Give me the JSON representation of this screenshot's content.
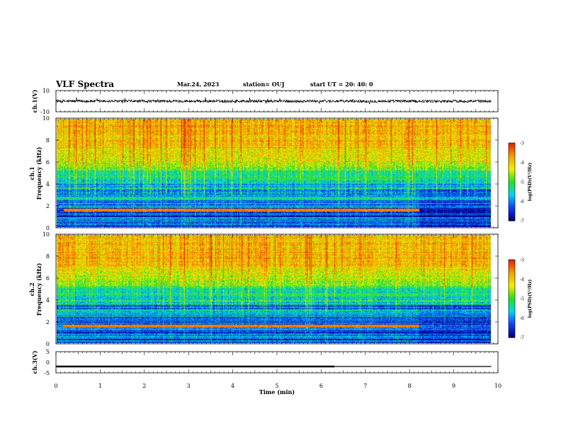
{
  "header": {
    "title": "VLF Spectra",
    "date": "Mar.24, 2023",
    "station": "station= OUJ",
    "start": "start  UT  =   20: 40: 0"
  },
  "colors": {
    "red": "#e8200a",
    "orange": "#f5a000",
    "yellow": "#f0f000",
    "green": "#22e020",
    "cyan": "#00d8f0",
    "blue": "#1040ff",
    "navy": "#000080"
  },
  "chart_data": [
    {
      "type": "line",
      "panel": "ch1_waveform",
      "ylabel": "ch.1(V)",
      "ylim": [
        -10,
        10
      ],
      "yticks": [
        "10",
        "-10"
      ],
      "xlim": [
        0,
        10
      ],
      "note_value_range": [
        -2,
        2
      ]
    },
    {
      "type": "heatmap",
      "panel": "ch1_spectrogram",
      "ylabel_line1": "ch.1",
      "ylabel_line2": "Frequency  (kHz)",
      "ylim": [
        0,
        10
      ],
      "yticks": [
        "0",
        "2",
        "4",
        "6",
        "8",
        "10"
      ],
      "xlim": [
        0,
        10
      ],
      "bands": [
        {
          "from_khz": 1.4,
          "to_khz": 1.7,
          "start_min": 0.15,
          "end_min": 8.35,
          "level": -3.5
        },
        {
          "from_khz": 4.3,
          "to_khz": 4.5,
          "start_min": 4.2,
          "end_min": 8.35,
          "level": -5.0
        }
      ],
      "colorbar": {
        "label": "log(PSD)(V²/Hz)",
        "ticks": [
          "-3",
          "-4",
          "-5",
          "-6",
          "-7"
        ],
        "range": [
          -7,
          -3
        ]
      }
    },
    {
      "type": "heatmap",
      "panel": "ch2_spectrogram",
      "ylabel_line1": "ch.2",
      "ylabel_line2": "Frequency  (kHz)",
      "ylim": [
        0,
        10
      ],
      "yticks": [
        "0",
        "2",
        "4",
        "6",
        "8",
        "10"
      ],
      "xlim": [
        0,
        10
      ],
      "bands": [
        {
          "from_khz": 1.4,
          "to_khz": 1.7,
          "start_min": 0.15,
          "end_min": 8.35,
          "level": -3.5
        },
        {
          "from_khz": 4.3,
          "to_khz": 4.5,
          "start_min": 4.2,
          "end_min": 8.35,
          "level": -5.0
        }
      ],
      "colorbar": {
        "label": "log(PSD)(V²/Hz)",
        "ticks": [
          "-3",
          "-4",
          "-5",
          "-6",
          "-7"
        ],
        "range": [
          -7,
          -3
        ]
      }
    },
    {
      "type": "line",
      "panel": "ch3_signal",
      "ylabel": "ch.3(V)",
      "ylim": [
        -5,
        5
      ],
      "yticks": [
        "5",
        "0",
        "-5"
      ],
      "xlim": [
        0,
        10
      ],
      "x": [
        0,
        9.85
      ],
      "y": [
        -2,
        -2
      ],
      "thick_segment_end_min": 6.3
    }
  ],
  "xaxis": {
    "label": "Time  (min)",
    "ticks": [
      "0",
      "1",
      "2",
      "3",
      "4",
      "5",
      "6",
      "7",
      "8",
      "9",
      "10"
    ]
  }
}
